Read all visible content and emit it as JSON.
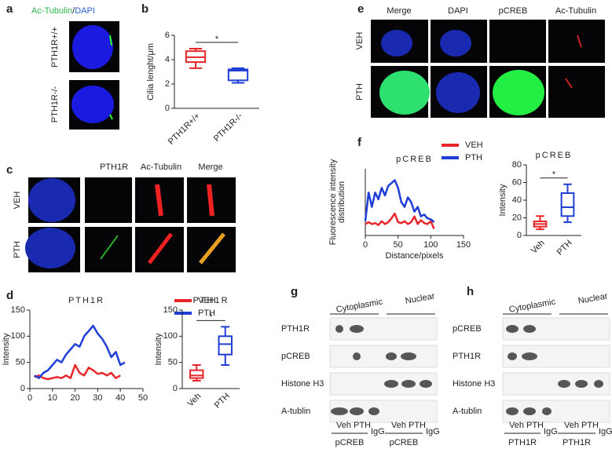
{
  "panels": {
    "a": {
      "letter": "a",
      "title_parts": [
        "Ac-Tubulin",
        "/",
        "DAPI"
      ],
      "rows": [
        "PTH1R+/+",
        "PTH1R-/-"
      ]
    },
    "b": {
      "letter": "b"
    },
    "c": {
      "letter": "c",
      "columns": [
        "PTH1R",
        "Ac-Tubulin",
        "Merge"
      ],
      "rows": [
        "VEH",
        "PTH"
      ]
    },
    "d": {
      "letter": "d"
    },
    "e": {
      "letter": "e",
      "columns": [
        "Merge",
        "DAPI",
        "pCREB",
        "Ac-Tubulin"
      ],
      "rows": [
        "VEH",
        "PTH"
      ]
    },
    "f": {
      "letter": "f"
    },
    "g": {
      "letter": "g",
      "groups": [
        "Cytoplasmic",
        "Nuclear"
      ],
      "rows": [
        "PTH1R",
        "pCREB",
        "Histone H3",
        "A-tublin"
      ],
      "lanes": [
        "Veh",
        "PTH",
        "IgG",
        "Veh",
        "PTH",
        "IgG"
      ],
      "ip": [
        "pCREB",
        "pCREB"
      ]
    },
    "h": {
      "letter": "h",
      "groups": [
        "Cytoplasmic",
        "Nuclear"
      ],
      "rows": [
        "pCREB",
        "PTH1R",
        "Histone H3",
        "A-tublin"
      ],
      "lanes": [
        "Veh",
        "PTH",
        "IgG",
        "Veh",
        "PTH",
        "IgG"
      ],
      "ip": [
        "PTH1R",
        "PTH1R"
      ]
    }
  },
  "chart_data": [
    {
      "type": "box",
      "ylabel": "Cilia lenght/μm",
      "categories": [
        "PTH1R+/+",
        "PTH1R-/-"
      ],
      "colors": [
        "#e8262a",
        "#1f3fd6"
      ],
      "boxes": [
        {
          "min": 3.3,
          "q1": 3.8,
          "median": 4.2,
          "q3": 4.7,
          "max": 4.9
        },
        {
          "min": 2.1,
          "q1": 2.3,
          "median": 3.1,
          "q3": 3.2,
          "max": 3.3
        }
      ],
      "ylim": [
        0,
        6
      ],
      "yticks": [
        0,
        2,
        4,
        6
      ],
      "annotation": "*"
    },
    {
      "type": "line",
      "title": "PTH1R",
      "ylabel": "Intensity",
      "xlim": [
        0,
        50
      ],
      "xticks": [
        0,
        10,
        20,
        30,
        40,
        50
      ],
      "ylim": [
        0,
        150
      ],
      "yticks": [
        0,
        50,
        100,
        150
      ],
      "x": [
        2,
        4,
        6,
        8,
        10,
        12,
        14,
        16,
        18,
        20,
        22,
        24,
        26,
        28,
        30,
        32,
        34,
        36,
        38,
        40,
        42
      ],
      "series": [
        {
          "name": "VEH",
          "color": "#e8262a",
          "values": [
            22,
            25,
            20,
            18,
            20,
            22,
            20,
            25,
            20,
            45,
            30,
            25,
            40,
            35,
            28,
            30,
            25,
            30,
            20,
            25,
            null
          ]
        },
        {
          "name": "PTH",
          "color": "#1f3fd6",
          "values": [
            25,
            20,
            30,
            35,
            45,
            55,
            50,
            65,
            75,
            85,
            80,
            100,
            110,
            120,
            105,
            95,
            80,
            60,
            70,
            45,
            50
          ]
        }
      ]
    },
    {
      "type": "box",
      "title": "PTH1R",
      "ylabel": "Intensity",
      "categories": [
        "Veh",
        "PTH"
      ],
      "colors": [
        "#e8262a",
        "#1f3fd6"
      ],
      "boxes": [
        {
          "min": 15,
          "q1": 20,
          "median": 25,
          "q3": 35,
          "max": 45
        },
        {
          "min": 45,
          "q1": 65,
          "median": 85,
          "q3": 100,
          "max": 118
        }
      ],
      "ylim": [
        0,
        150
      ],
      "yticks": [
        0,
        50,
        100,
        150
      ],
      "annotation": "*"
    },
    {
      "type": "line",
      "title": "pCREB",
      "ylabel": [
        "Fluorescence intensity",
        "distribution"
      ],
      "xlabel": "Distance/pixels",
      "xlim": [
        0,
        150
      ],
      "xticks": [
        0,
        50,
        100,
        150
      ],
      "ylim": [
        0,
        70
      ],
      "x": [
        0,
        5,
        10,
        15,
        20,
        25,
        30,
        35,
        40,
        45,
        50,
        55,
        60,
        65,
        70,
        75,
        80,
        85,
        90,
        95,
        100,
        105
      ],
      "series": [
        {
          "name": "VEH",
          "color": "#e8262a",
          "values": [
            12,
            14,
            12,
            13,
            11,
            15,
            12,
            14,
            18,
            23,
            14,
            13,
            15,
            12,
            14,
            20,
            12,
            16,
            13,
            12,
            15,
            7
          ]
        },
        {
          "name": "PTH",
          "color": "#1f3fd6",
          "values": [
            15,
            45,
            30,
            45,
            38,
            50,
            42,
            52,
            55,
            58,
            50,
            35,
            30,
            40,
            35,
            25,
            30,
            20,
            22,
            18,
            17,
            14
          ]
        }
      ]
    },
    {
      "type": "box",
      "title": "pCREB",
      "ylabel": "Intensity",
      "categories": [
        "Veh",
        "PTH"
      ],
      "colors": [
        "#e8262a",
        "#1f3fd6"
      ],
      "boxes": [
        {
          "min": 7,
          "q1": 10,
          "median": 13,
          "q3": 16,
          "max": 22
        },
        {
          "min": 15,
          "q1": 22,
          "median": 32,
          "q3": 48,
          "max": 58
        }
      ],
      "ylim": [
        0,
        80
      ],
      "yticks": [
        0,
        20,
        40,
        60,
        80
      ],
      "annotation": "*"
    }
  ]
}
